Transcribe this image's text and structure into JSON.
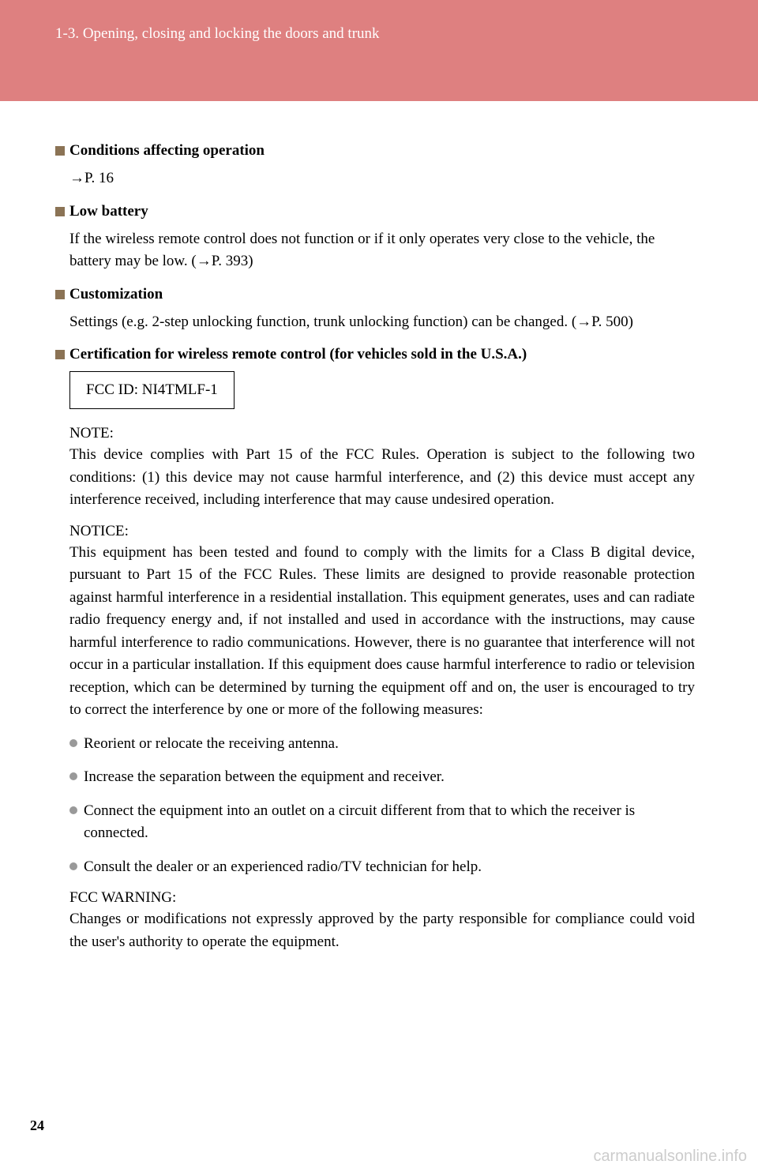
{
  "colors": {
    "header_bg": "#de8080",
    "header_text": "#ffffff",
    "body_text": "#000000",
    "square_bullet": "#8b7355",
    "round_bullet": "#999999",
    "watermark": "#cccccc",
    "page_bg": "#ffffff"
  },
  "typography": {
    "body_fontsize": 19,
    "header_fontsize": 19,
    "font_family": "Georgia, serif"
  },
  "header": {
    "section_label": "1-3. Opening, closing and locking the doors and trunk"
  },
  "sections": [
    {
      "title": "Conditions affecting operation",
      "body": "→P. 16"
    },
    {
      "title": "Low battery",
      "body": "If the wireless remote control does not function or if it only operates very close to the vehicle, the battery may be low. (→P. 393)"
    },
    {
      "title": "Customization",
      "body": "Settings (e.g. 2-step unlocking function, trunk unlocking function) can be changed. (→P. 500)"
    },
    {
      "title": "Certification for wireless remote control (for vehicles sold in the U.S.A.)",
      "body": ""
    }
  ],
  "fcc_box": "FCC ID: NI4TMLF-1",
  "note": {
    "heading": "NOTE:",
    "body": "This device complies with Part 15 of the FCC Rules. Operation is subject to the following two conditions: (1) this device may not cause harmful interference, and (2) this device must accept any interference received, including interference that may cause undesired operation."
  },
  "notice": {
    "heading": "NOTICE:",
    "body": "This equipment has been tested and found to comply with the limits for a Class B digital device, pursuant to Part 15 of the FCC Rules. These limits are designed to provide reasonable protection against harmful interference in a residential installation. This equipment generates, uses and can radiate radio frequency energy and, if not installed and used in accordance with the instructions, may cause harmful interference to radio communications. However, there is no guarantee that interference will not occur in a particular installation. If this equipment does cause harmful interference to radio or television reception, which can be determined by turning the equipment off and on, the user is encouraged to try to correct the interference by one or more of the following measures:"
  },
  "measures": [
    "Reorient or relocate the receiving antenna.",
    "Increase the separation between the equipment and receiver.",
    "Connect the equipment into an outlet on a circuit different from that to which the receiver is connected.",
    "Consult the dealer or an experienced radio/TV technician for help."
  ],
  "warning": {
    "heading": "FCC WARNING:",
    "body": "Changes or modifications not expressly approved by the party responsible for compliance could void the user's authority to operate the equipment."
  },
  "page_number": "24",
  "watermark": "carmanualsonline.info"
}
